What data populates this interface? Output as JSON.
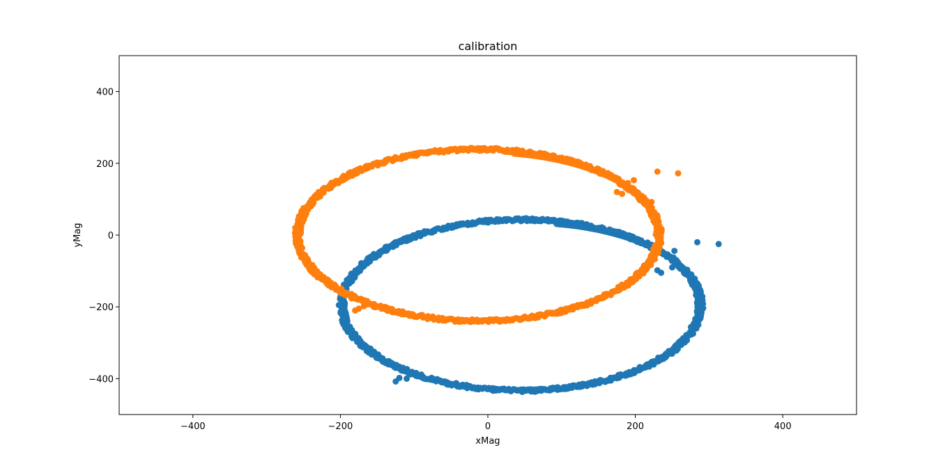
{
  "chart_data": {
    "type": "scatter",
    "title": "calibration",
    "xlabel": "xMag",
    "ylabel": "yMag",
    "xlim": [
      -500,
      500
    ],
    "ylim": [
      -500,
      500
    ],
    "xticks": [
      -400,
      -200,
      0,
      200,
      400
    ],
    "yticks": [
      -400,
      -200,
      0,
      200,
      400
    ],
    "grid": false,
    "legend": "none",
    "series": [
      {
        "color": "#1f77b4",
        "ellipse": {
          "cx": 45,
          "cy": -195,
          "rx": 243,
          "ry": 243
        },
        "extra_points": [
          [
            240,
            -52
          ],
          [
            253,
            -44
          ],
          [
            284,
            -20
          ],
          [
            313,
            -25
          ],
          [
            250,
            -90
          ],
          [
            262,
            -88
          ],
          [
            276,
            -110
          ],
          [
            235,
            -105
          ],
          [
            230,
            -98
          ],
          [
            -120,
            -398
          ],
          [
            -125,
            -408
          ],
          [
            -110,
            -400
          ]
        ]
      },
      {
        "color": "#ff7f0e",
        "ellipse": {
          "cx": -13,
          "cy": 0,
          "rx": 245,
          "ry": 244
        },
        "extra_points": [
          [
            190,
            145
          ],
          [
            198,
            153
          ],
          [
            230,
            177
          ],
          [
            258,
            172
          ],
          [
            175,
            120
          ],
          [
            182,
            115
          ],
          [
            208,
            110
          ],
          [
            213,
            100
          ],
          [
            222,
            92
          ],
          [
            -180,
            -210
          ],
          [
            -175,
            -205
          ],
          [
            -168,
            -198
          ]
        ]
      }
    ]
  }
}
